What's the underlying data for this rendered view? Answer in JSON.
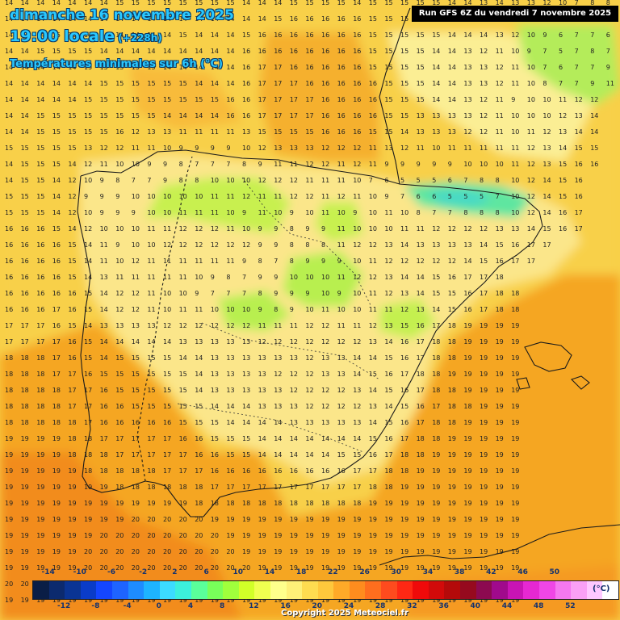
{
  "header": {
    "date": "dimanche 16 novembre 2025",
    "time": "19:00 locale",
    "offset": "(+228h)",
    "subtitle": "Températures minimales sur 6h (°C)",
    "run": "Run GFS 6Z du vendredi 7 novembre 2025"
  },
  "map": {
    "region": "Péninsule Ibérique",
    "grid_rows": [
      "14 14 14 14 14 14 14 15 15 15 15 15 15 15 15 14 14 14 15 15 15 15 14 15 15 15 15 15 14 14 13 14 13 13 12 10 7 8 8 9",
      "14 14 14 14 14 14 14 14 14 14 14 14 14 14 14 14 14 15 16 16 16 16 16 15 15 15 15 15 15 14 13 13 12 10 7 7 8 9 8 9",
      "14 14 14 15 15 14 14 14 14 14 14 15 14 14 14 15 16 16 16 16 16 16 16 15 15 15 15 15 14 14 14 13 12 10 9 6 7 7 6 7",
      "14 14 15 15 15 15 14 14 14 14 14 14 14 14 14 16 16 16 16 16 16 16 16 15 15 15 15 14 14 13 12 11 10 9 7 5 7 8 7 7",
      "14 14 14 14 14 15 15 15 15 15 14 14 14 14 14 16 17 17 16 16 16 16 16 15 15 15 15 14 14 13 13 12 11 10 7 6 7 7 9 8",
      "14 14 14 14 14 14 15 15 15 15 15 15 14 14 14 16 17 17 17 16 16 16 16 16 15 15 15 14 14 13 13 12 11 10 8 7 7 9 11",
      "14 14 14 14 14 15 15 15 15 15 15 15 15 15 16 16 17 17 17 17 16 16 16 16 15 15 15 14 14 13 12 11 9 10 10 11 12 12",
      "14 14 15 15 15 15 15 15 15 15 14 14 14 14 16 16 17 17 17 17 16 16 16 16 15 15 13 13 13 13 12 11 10 10 10 12 13 14",
      "14 14 15 15 15 15 15 16 12 13 13 11 11 11 11 13 15 15 15 15 16 16 16 15 15 14 13 13 13 12 12 11 10 11 12 13 14 14",
      "15 15 15 15 15 13 12 12 11 11 10 9 9 9 9 10 12 13 13 13 12 12 12 11 13 12 11 10 11 11 11 11 11 12 13 14 15 15",
      "14 15 15 15 14 12 11 10 10 9 9 8 7 7 7 8 9 11 11 12 12 11 12 11 9 9 9 9 9 10 10 10 11 12 13 15 16 16",
      "14 15 15 14 12 10 9 8 7 7 9 8 8 10 10 10 12 12 12 11 11 11 10 7 6 5 5 5 6 7 8 8 10 12 14 15 16",
      "15 15 15 14 12 9 9 9 10 10 10 10 10 11 11 12 11 11 12 12 11 12 11 10 9 7 6 6 5 5 5 7 10 12 14 15 16",
      "15 15 15 14 12 10 9 9 9 10 10 11 11 11 10 9 11 10 9 10 11 10 9 10 11 10 8 7 7 8 8 8 10 12 14 16 17",
      "16 16 16 15 14 12 10 10 10 11 11 12 12 12 11 10 9 9 8 9 9 11 10 10 10 11 11 12 12 12 12 13 13 14 15 16 17",
      "16 16 16 16 15 14 11 9 10 10 12 12 12 12 12 12 9 9 8 8 8 11 12 12 13 14 13 13 13 13 14 15 16 17 17",
      "16 16 16 16 15 14 11 10 12 11 11 11 11 11 11 9 8 7 8 9 9 9 10 11 12 12 12 12 12 14 15 16 17 17",
      "16 16 16 16 15 14 13 11 11 11 11 11 10 9 8 7 9 9 10 10 10 11 12 12 13 14 14 15 16 17 17 18",
      "16 16 16 16 16 15 14 12 12 11 10 10 9 7 7 7 8 9 9 9 10 9 10 11 12 13 14 15 15 16 17 18 18",
      "16 16 16 17 16 15 14 12 12 11 10 11 11 10 10 10 9 8 9 10 11 10 10 11 11 12 13 14 15 16 17 18 18",
      "17 17 17 16 15 14 13 13 13 13 12 12 12 12 12 12 11 11 11 12 12 11 11 12 13 15 16 17 18 19 19 19 19",
      "17 17 17 17 16 15 14 14 14 14 14 13 13 13 13 13 12 12 12 12 12 12 12 13 14 16 17 18 18 19 19 19 19",
      "18 18 18 17 16 15 14 15 15 15 15 14 14 13 13 13 13 13 13 12 13 13 14 14 15 16 17 18 18 19 19 19 19",
      "18 18 18 17 17 16 15 15 15 15 15 15 14 13 13 13 13 12 12 12 13 13 14 15 16 17 18 18 19 19 19 19 19",
      "18 18 18 18 17 17 16 15 15 15 15 15 14 13 13 13 13 13 12 12 12 12 13 14 15 16 17 18 18 19 19 19 19",
      "18 18 18 18 17 17 16 16 15 15 15 15 15 14 14 14 13 13 13 12 12 12 12 13 14 15 16 17 18 18 19 19 19",
      "18 18 18 18 18 17 16 16 16 16 16 15 15 15 14 14 14 14 13 13 13 13 13 14 15 16 17 18 18 19 19 19 19",
      "19 19 19 19 18 18 17 17 17 17 17 16 16 15 15 15 14 14 14 14 14 14 14 15 16 17 18 18 19 19 19 19 19",
      "19 19 19 19 18 18 18 17 17 17 17 17 16 16 15 15 14 14 14 14 14 15 15 16 17 18 18 19 19 19 19 19 19",
      "19 19 19 19 19 18 18 18 18 18 17 17 17 16 16 16 16 16 16 16 16 16 17 17 18 18 19 19 19 19 19 19 19",
      "19 19 19 19 19 19 19 18 18 18 18 18 18 17 17 17 17 17 17 17 17 17 17 18 18 19 19 19 19 19 19 19 19",
      "19 19 19 19 19 19 19 19 19 19 19 19 18 18 18 18 18 18 18 18 18 18 18 19 19 19 19 19 19 19 19 19 19",
      "19 19 19 19 19 19 19 19 20 20 20 20 20 19 19 19 19 19 19 19 19 19 19 19 19 19 19 19 19 19 19 19 19",
      "19 19 19 19 19 19 20 20 20 20 20 20 20 20 19 19 19 19 19 19 19 19 19 19 19 19 19 19 19 19 19 19 19",
      "19 19 19 19 19 20 20 20 20 20 20 20 20 20 20 19 19 19 19 19 19 19 19 19 19 19 19 19 19 19 19 19 19",
      "19 19 19 19 19 20 20 20 20 20 20 20 20 20 20 20 19 19 19 19 19 19 19 19 19 19 19 19 19 19 19 19 19",
      "20 20 20 20 20 20 20 20 20 20 20 20 20 20 20 20 20 20 20 20 20 20 20 20 20 20 20 20 20 20 20 20 20",
      "19 19 19 19 19 19 19 19 19 19 19 19 19 19 19 19 19 19 19 19 19 19 19 19 19 19 19 19 19 19 19 19 19"
    ]
  },
  "legend": {
    "top_labels": [
      "-14",
      "-10",
      "-6",
      "-2",
      "2",
      "6",
      "10",
      "14",
      "18",
      "22",
      "26",
      "30",
      "34",
      "38",
      "42",
      "46",
      "50"
    ],
    "bottom_labels": [
      "-12",
      "-8",
      "-4",
      "0",
      "4",
      "8",
      "12",
      "16",
      "20",
      "24",
      "28",
      "32",
      "36",
      "40",
      "44",
      "48",
      "52"
    ],
    "colors": [
      "#0a1e46",
      "#0c2a6e",
      "#0a3494",
      "#0a3cc8",
      "#1446ff",
      "#1e64ff",
      "#1e8cff",
      "#1eb4ff",
      "#3cdcff",
      "#3cf0dc",
      "#5aff9a",
      "#78ff5a",
      "#a0ff3c",
      "#d2ff28",
      "#f0ff50",
      "#ffff8c",
      "#fff078",
      "#ffdc50",
      "#ffc83c",
      "#ffaa28",
      "#ff8c1e",
      "#ff6e1e",
      "#ff4b1e",
      "#ff2814",
      "#f00a0a",
      "#d20a0a",
      "#b40a0a",
      "#960a1e",
      "#8c0a50",
      "#a00a8c",
      "#c814b4",
      "#e628d2",
      "#f046e6",
      "#f578f0",
      "#faa0f5",
      "#ffc8ff",
      "#ffffff"
    ],
    "unit": "(°C)"
  },
  "copyright": "Copyright 2025 Meteociel.fr"
}
